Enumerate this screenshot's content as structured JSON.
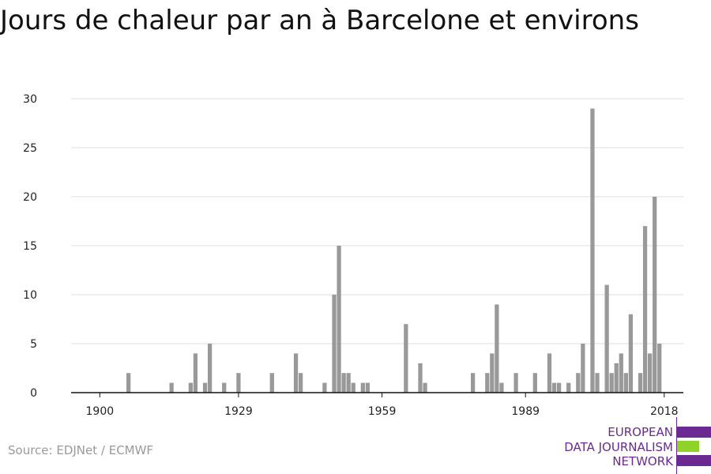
{
  "title": "Jours de chaleur par an à Barcelone et environs",
  "source": "Source: EDJNet / ECMWF",
  "logo": {
    "lines": [
      "EUROPEAN",
      "DATA JOURNALISM",
      "NETWORK"
    ],
    "colors": {
      "purple": "#6b2a91",
      "green": "#8fd22a"
    }
  },
  "chart_data": {
    "type": "bar",
    "title": "Jours de chaleur par an à Barcelone et environs",
    "xlabel": "",
    "ylabel": "",
    "xlim": [
      1894,
      2022
    ],
    "ylim": [
      0,
      30
    ],
    "yticks": [
      0,
      5,
      10,
      15,
      20,
      25,
      30
    ],
    "xticks": [
      1900,
      1929,
      1959,
      1989,
      2018
    ],
    "grid": true,
    "bar_color": "#999999",
    "x": [
      1906,
      1915,
      1919,
      1920,
      1922,
      1923,
      1926,
      1929,
      1936,
      1942,
      1947,
      1950,
      1951,
      1952,
      1953,
      1956,
      1941,
      1949,
      1955,
      1964,
      1967,
      1968,
      1978,
      1981,
      1982,
      1983,
      1984,
      1987,
      1991,
      1994,
      1995,
      1996,
      1998,
      2000,
      2001,
      2003,
      2004,
      2006,
      2007,
      2008,
      2009,
      2010,
      2011,
      2013,
      2014,
      2015,
      2016,
      2017,
      2018
    ],
    "values": [
      2,
      1,
      1,
      4,
      1,
      5,
      1,
      2,
      2,
      2,
      1,
      15,
      2,
      2,
      1,
      1,
      4,
      10,
      1,
      7,
      3,
      1,
      2,
      2,
      4,
      9,
      1,
      2,
      2,
      4,
      1,
      1,
      1,
      2,
      5,
      29,
      2,
      11,
      2,
      3,
      4,
      2,
      8,
      2,
      17,
      4,
      20,
      5,
      0
    ]
  }
}
